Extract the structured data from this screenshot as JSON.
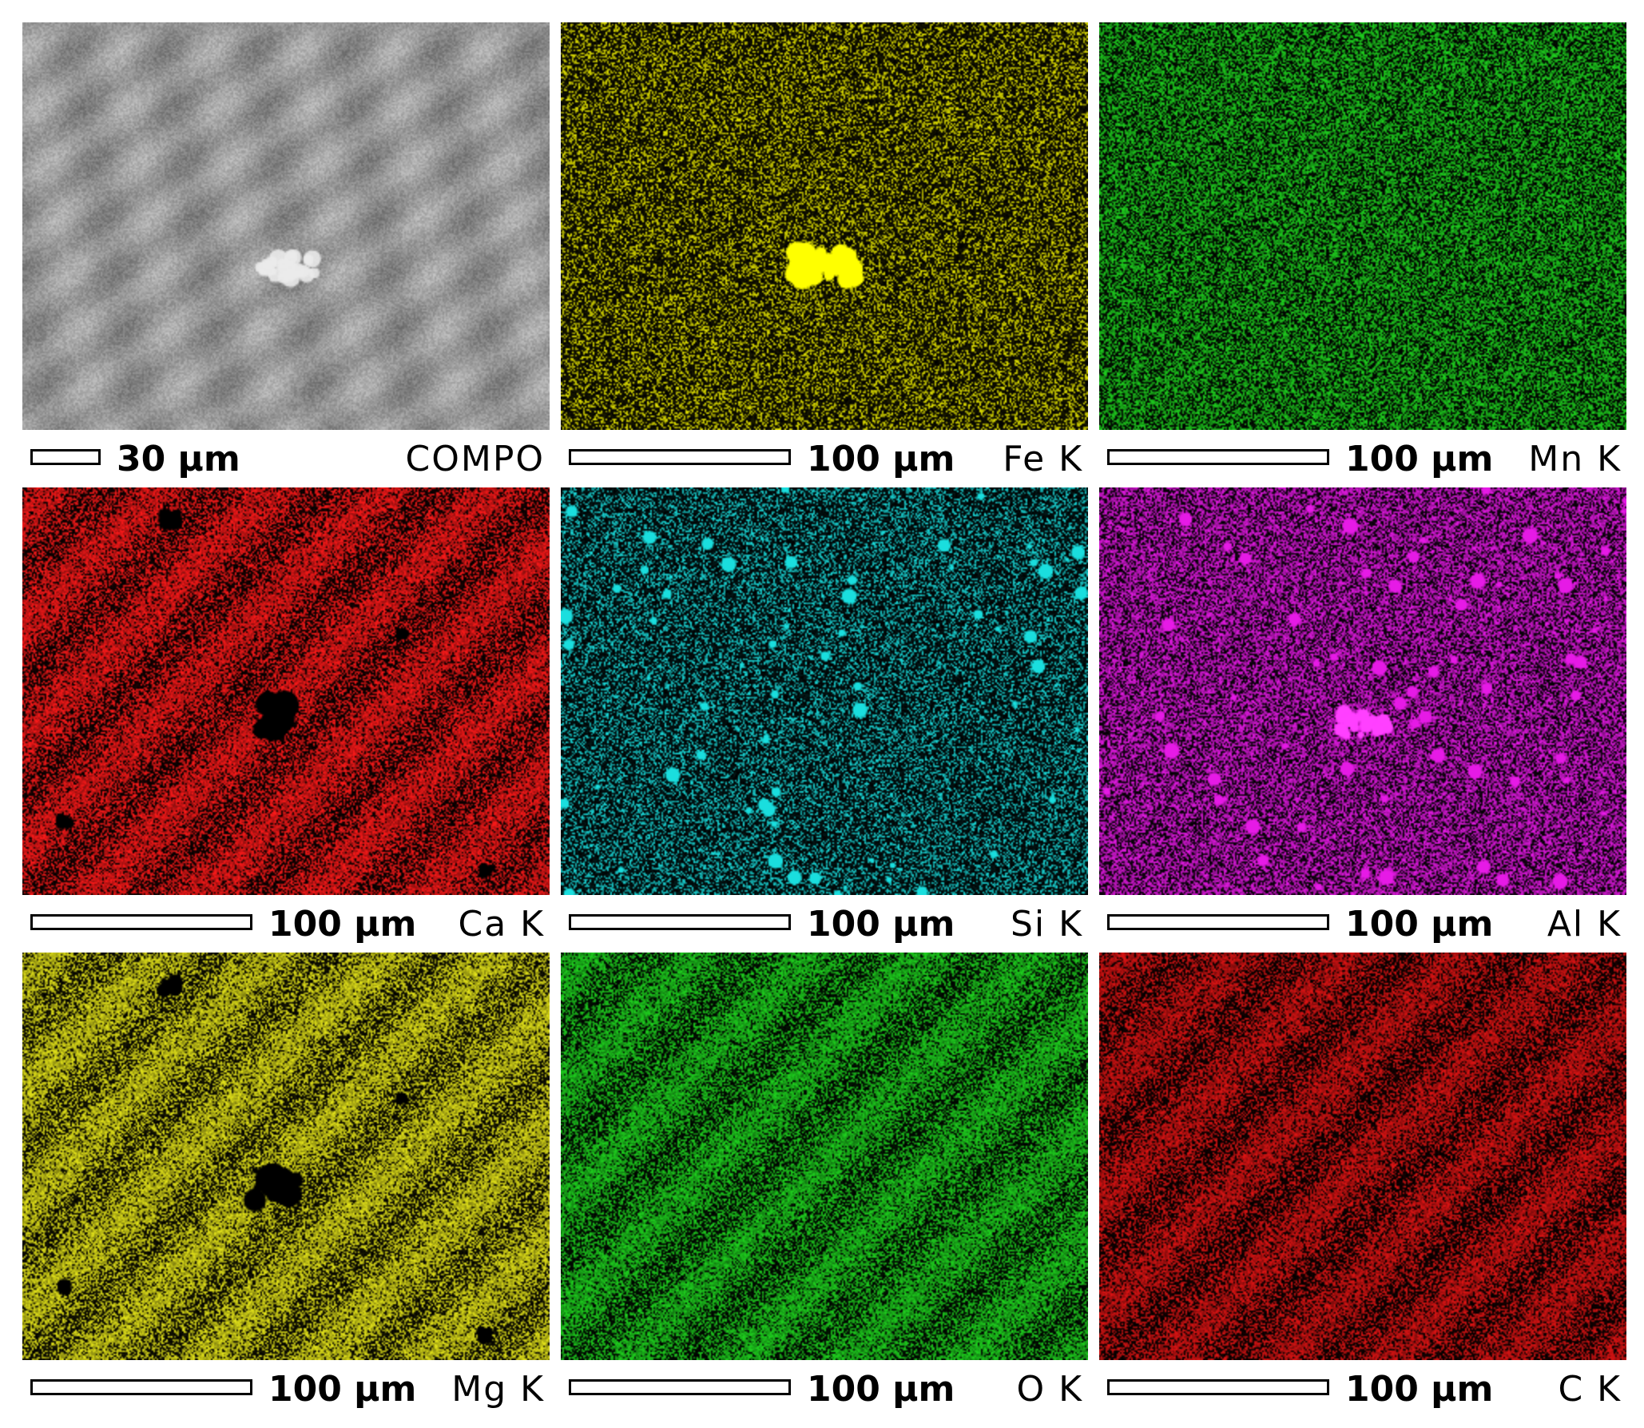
{
  "panels": [
    {
      "label": "COMPO",
      "scale": "30 µm",
      "color": "#9a9a9a",
      "kind": "sem"
    },
    {
      "label": "Fe K",
      "scale": "100 µm",
      "color": "#e6e600",
      "kind": "sparse",
      "density": 0.35
    },
    {
      "label": "Mn K",
      "scale": "100 µm",
      "color": "#1fd41f",
      "kind": "sparse",
      "density": 0.55
    },
    {
      "label": "Ca K",
      "scale": "100 µm",
      "color": "#ff1a1a",
      "kind": "dense",
      "density": 0.85
    },
    {
      "label": "Si K",
      "scale": "100 µm",
      "color": "#1adede",
      "kind": "spots",
      "density": 0.35
    },
    {
      "label": "Al K",
      "scale": "100 µm",
      "color": "#e61ae6",
      "kind": "spots",
      "density": 0.6
    },
    {
      "label": "Mg K",
      "scale": "100 µm",
      "color": "#e6e61a",
      "kind": "dense",
      "density": 0.85
    },
    {
      "label": "O K",
      "scale": "100 µm",
      "color": "#1fd41f",
      "kind": "dense",
      "density": 0.85
    },
    {
      "label": "C K",
      "scale": "100 µm",
      "color": "#e01414",
      "kind": "dense",
      "density": 0.8
    }
  ]
}
